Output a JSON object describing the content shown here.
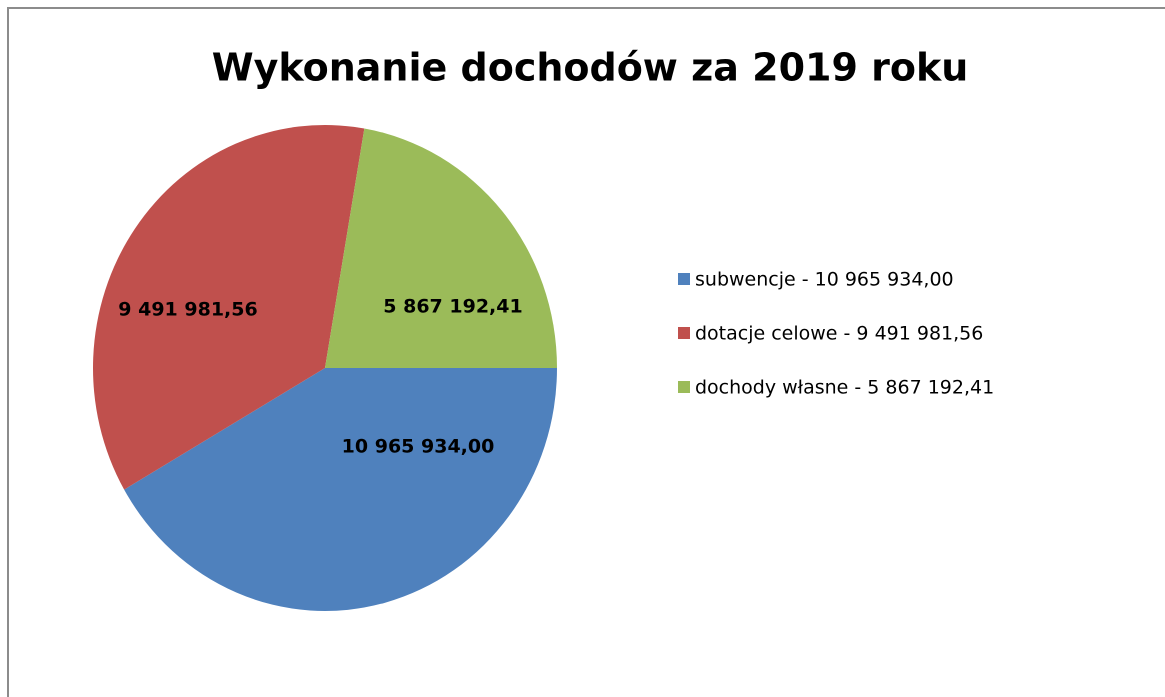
{
  "chart_data": {
    "type": "pie",
    "title": "Wykonanie dochodów za 2019 roku",
    "categories": [
      "subwencje - 10 965 934,00",
      "dotacje celowe - 9 491 981,56",
      "dochody własne - 5 867 192,41"
    ],
    "values": [
      10965934.0,
      9491981.56,
      5867192.41
    ],
    "value_labels": [
      "10 965 934,00",
      "9 491 981,56",
      "5 867 192,41"
    ],
    "colors": [
      "#4f81bd",
      "#c0504d",
      "#9bbb59"
    ],
    "legend": "right"
  }
}
